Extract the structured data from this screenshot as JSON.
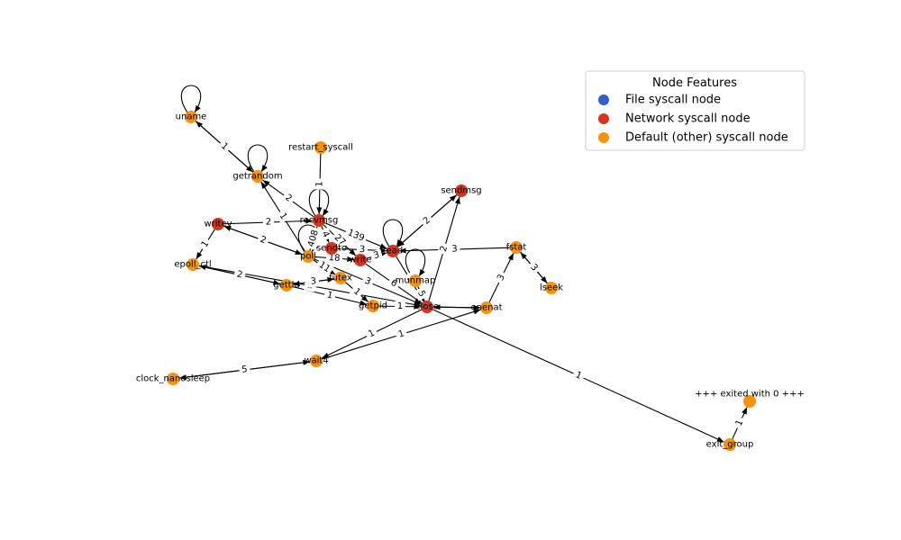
{
  "colors": {
    "file": "#2f5fc7",
    "network": "#d3361d",
    "default": "#f6920b"
  },
  "legend": {
    "title": "Node Features",
    "items": [
      {
        "label": "File syscall node",
        "type": "file"
      },
      {
        "label": "Network syscall node",
        "type": "network"
      },
      {
        "label": "Default (other) syscall node",
        "type": "default"
      }
    ]
  },
  "nodes": [
    {
      "id": "uname",
      "label": "uname",
      "type": "default"
    },
    {
      "id": "getrandom",
      "label": "getrandom",
      "type": "default"
    },
    {
      "id": "restart_syscall",
      "label": "restart_syscall",
      "type": "default"
    },
    {
      "id": "sendmsg",
      "label": "sendmsg",
      "type": "network"
    },
    {
      "id": "writev",
      "label": "writev",
      "type": "network"
    },
    {
      "id": "recvmsg",
      "label": "recvmsg",
      "type": "network"
    },
    {
      "id": "sendto",
      "label": "sendto",
      "type": "network"
    },
    {
      "id": "read",
      "label": "read",
      "type": "network"
    },
    {
      "id": "fstat",
      "label": "fstat",
      "type": "default"
    },
    {
      "id": "poll",
      "label": "poll",
      "type": "default"
    },
    {
      "id": "write",
      "label": "write",
      "type": "network"
    },
    {
      "id": "epoll_ctl",
      "label": "epoll_ctl",
      "type": "default"
    },
    {
      "id": "futex",
      "label": "futex",
      "type": "default"
    },
    {
      "id": "munmap",
      "label": "munmap",
      "type": "default"
    },
    {
      "id": "gettid",
      "label": "gettid",
      "type": "default"
    },
    {
      "id": "lseek",
      "label": "lseek",
      "type": "default"
    },
    {
      "id": "getpid",
      "label": "getpid",
      "type": "default"
    },
    {
      "id": "close",
      "label": "close",
      "type": "network"
    },
    {
      "id": "openat",
      "label": "openat",
      "type": "default"
    },
    {
      "id": "wait4",
      "label": "wait4",
      "type": "default"
    },
    {
      "id": "clock_nanosleep",
      "label": "clock_nanosleep",
      "type": "default"
    },
    {
      "id": "exited",
      "label": "+++ exited with 0 +++",
      "type": "default"
    },
    {
      "id": "exit_group",
      "label": "exit_group",
      "type": "default"
    }
  ],
  "edges": [
    {
      "from": "uname",
      "to": "getrandom",
      "label": "1"
    },
    {
      "from": "getrandom",
      "to": "uname",
      "label": ""
    },
    {
      "from": "restart_syscall",
      "to": "recvmsg",
      "label": "1"
    },
    {
      "from": "recvmsg",
      "to": "getrandom",
      "label": "2"
    },
    {
      "from": "poll",
      "to": "getrandom",
      "label": "1"
    },
    {
      "from": "writev",
      "to": "recvmsg",
      "label": "2"
    },
    {
      "from": "writev",
      "to": "poll",
      "label": "2"
    },
    {
      "from": "poll",
      "to": "writev",
      "label": ""
    },
    {
      "from": "writev",
      "to": "epoll_ctl",
      "label": "1"
    },
    {
      "from": "epoll_ctl",
      "to": "gettid",
      "label": "2"
    },
    {
      "from": "gettid",
      "to": "epoll_ctl",
      "label": ""
    },
    {
      "from": "epoll_ctl",
      "to": "close",
      "label": "1"
    },
    {
      "from": "recvmsg",
      "to": "read",
      "label": "139"
    },
    {
      "from": "recvmsg",
      "to": "poll",
      "label": "408"
    },
    {
      "from": "recvmsg",
      "to": "sendto",
      "label": "4"
    },
    {
      "from": "recvmsg",
      "to": "write",
      "label": "27"
    },
    {
      "from": "sendmsg",
      "to": "read",
      "label": "2"
    },
    {
      "from": "read",
      "to": "sendmsg",
      "label": ""
    },
    {
      "from": "fstat",
      "to": "read",
      "label": "3"
    },
    {
      "from": "fstat",
      "to": "lseek",
      "label": "3"
    },
    {
      "from": "lseek",
      "to": "fstat",
      "label": ""
    },
    {
      "from": "openat",
      "to": "fstat",
      "label": "3"
    },
    {
      "from": "sendto",
      "to": "read",
      "label": "3"
    },
    {
      "from": "poll",
      "to": "write",
      "label": "18"
    },
    {
      "from": "poll",
      "to": "futex",
      "label": "11"
    },
    {
      "from": "gettid",
      "to": "futex",
      "label": "1"
    },
    {
      "from": "futex",
      "to": "gettid",
      "label": "3"
    },
    {
      "from": "write",
      "to": "read",
      "label": "3"
    },
    {
      "from": "write",
      "to": "close",
      "label": "6"
    },
    {
      "from": "read",
      "to": "close",
      "label": "1"
    },
    {
      "from": "munmap",
      "to": "close",
      "label": "5"
    },
    {
      "from": "close",
      "to": "sendmsg",
      "label": "2"
    },
    {
      "from": "close",
      "to": "openat",
      "label": ""
    },
    {
      "from": "openat",
      "to": "close",
      "label": ""
    },
    {
      "from": "futex",
      "to": "getpid",
      "label": "1"
    },
    {
      "from": "getpid",
      "to": "close",
      "label": "1"
    },
    {
      "from": "gettid",
      "to": "getpid",
      "label": "1"
    },
    {
      "from": "poll",
      "to": "close",
      "label": "3"
    },
    {
      "from": "close",
      "to": "wait4",
      "label": "1"
    },
    {
      "from": "wait4",
      "to": "openat",
      "label": "1"
    },
    {
      "from": "clock_nanosleep",
      "to": "wait4",
      "label": "5"
    },
    {
      "from": "wait4",
      "to": "clock_nanosleep",
      "label": ""
    },
    {
      "from": "close",
      "to": "exit_group",
      "label": "1"
    },
    {
      "from": "exit_group",
      "to": "exited",
      "label": "1"
    }
  ],
  "self_loops": [
    "uname",
    "getrandom",
    "recvmsg",
    "read",
    "poll",
    "munmap"
  ]
}
